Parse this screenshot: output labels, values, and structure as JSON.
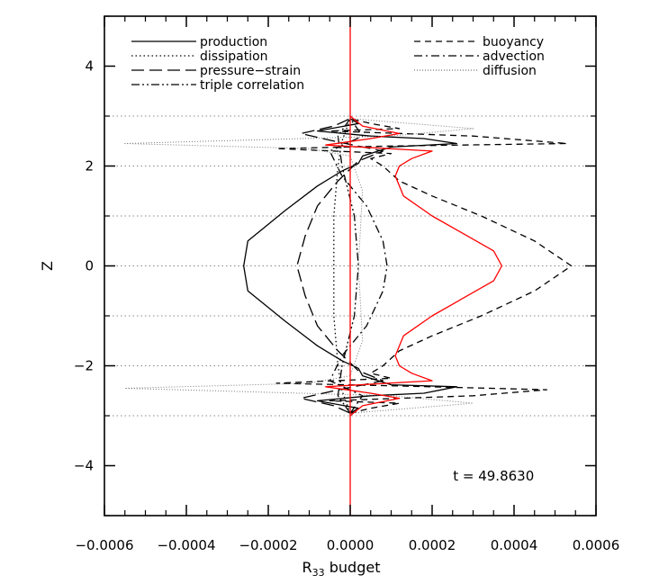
{
  "chart_data": {
    "type": "line",
    "title": "",
    "xlabel": "R",
    "xlabel_sub": "33",
    "xlabel_rest": " budget",
    "ylabel": "Z",
    "xlim": [
      -0.0006,
      0.0006
    ],
    "ylim": [
      -5,
      5
    ],
    "x_ticks": [
      -0.0006,
      -0.0004,
      -0.0002,
      0.0,
      0.0002,
      0.0004,
      0.0006
    ],
    "x_tick_labels": [
      "−0.0006",
      "−0.0004",
      "−0.0002",
      "0.0000",
      "0.0002",
      "0.0004",
      "0.0006"
    ],
    "y_ticks": [
      -4,
      -2,
      0,
      2,
      4
    ],
    "y_tick_labels": [
      "−4",
      "−2",
      "0",
      "2",
      "4"
    ],
    "grid": "dotted horizontal lines at z = -3, -2, -1, 0, 1, 2, 3",
    "grid_y": [
      -3,
      -2,
      -1,
      0,
      1,
      2,
      3
    ],
    "annotation": "t = 49.8630",
    "legend_placement": "top",
    "legend_left": [
      {
        "label": "production",
        "style": "solid"
      },
      {
        "label": "dissipation",
        "style": "dotted"
      },
      {
        "label": "pressure−strain",
        "style": "longdash"
      },
      {
        "label": "triple correlation",
        "style": "dashdotdot"
      }
    ],
    "legend_right": [
      {
        "label": "buoyancy",
        "style": "dashed"
      },
      {
        "label": "advection",
        "style": "dashdot"
      },
      {
        "label": "diffusion",
        "style": "finedot"
      }
    ],
    "series": [
      {
        "name": "buoyancy",
        "style": "dashed",
        "color": "#000000",
        "points": [
          [
            0,
            -2.95
          ],
          [
            5e-05,
            -2.85
          ],
          [
            0.00012,
            -2.75
          ],
          [
            -5e-05,
            -2.7
          ],
          [
            0.0003,
            -2.6
          ],
          [
            0.00048,
            -2.48
          ],
          [
            0.0001,
            -2.4
          ],
          [
            -0.00018,
            -2.35
          ],
          [
            0.0001,
            -2.25
          ],
          [
            5e-05,
            -2.15
          ],
          [
            8e-05,
            -2.0
          ],
          [
            0.00012,
            -1.7
          ],
          [
            0.0002,
            -1.4
          ],
          [
            0.00032,
            -1.0
          ],
          [
            0.00045,
            -0.5
          ],
          [
            0.00054,
            0
          ],
          [
            0.00045,
            0.5
          ],
          [
            0.00032,
            1.0
          ],
          [
            0.0002,
            1.4
          ],
          [
            0.00012,
            1.7
          ],
          [
            8e-05,
            2.0
          ],
          [
            5e-05,
            2.15
          ],
          [
            0.0001,
            2.25
          ],
          [
            -0.00018,
            2.35
          ],
          [
            0.0001,
            2.4
          ],
          [
            0.00053,
            2.45
          ],
          [
            0.0003,
            2.6
          ],
          [
            -5e-05,
            2.7
          ],
          [
            0.00012,
            2.75
          ],
          [
            5e-05,
            2.85
          ],
          [
            0,
            2.95
          ]
        ]
      },
      {
        "name": "production",
        "style": "solid",
        "color": "#000000",
        "points": [
          [
            0,
            -2.95
          ],
          [
            2e-05,
            -2.85
          ],
          [
            -8e-05,
            -2.7
          ],
          [
            5e-05,
            -2.6
          ],
          [
            0.00018,
            -2.55
          ],
          [
            0.00026,
            -2.42
          ],
          [
            0.0001,
            -2.38
          ],
          [
            3e-05,
            -2.2
          ],
          [
            2e-05,
            -2.05
          ],
          [
            -2e-05,
            -1.9
          ],
          [
            -8e-05,
            -1.6
          ],
          [
            -0.00016,
            -1.1
          ],
          [
            -0.00025,
            -0.5
          ],
          [
            -0.00026,
            0
          ],
          [
            -0.00025,
            0.5
          ],
          [
            -0.00016,
            1.1
          ],
          [
            -8e-05,
            1.6
          ],
          [
            -2e-05,
            1.9
          ],
          [
            2e-05,
            2.05
          ],
          [
            3e-05,
            2.2
          ],
          [
            0.0001,
            2.38
          ],
          [
            0.00026,
            2.45
          ],
          [
            0.00018,
            2.55
          ],
          [
            5e-05,
            2.6
          ],
          [
            -8e-05,
            2.7
          ],
          [
            2e-05,
            2.85
          ],
          [
            0,
            2.95
          ]
        ]
      },
      {
        "name": "pressure−strain",
        "style": "longdash",
        "color": "#000000",
        "points": [
          [
            0,
            -2.95
          ],
          [
            -4e-05,
            -2.8
          ],
          [
            -0.00012,
            -2.65
          ],
          [
            -4e-05,
            -2.5
          ],
          [
            8e-05,
            -2.3
          ],
          [
            2e-05,
            -2.1
          ],
          [
            -3e-05,
            -1.7
          ],
          [
            -8e-05,
            -1.2
          ],
          [
            -0.00011,
            -0.6
          ],
          [
            -0.00013,
            0
          ],
          [
            -0.00011,
            0.6
          ],
          [
            -8e-05,
            1.2
          ],
          [
            -3e-05,
            1.7
          ],
          [
            2e-05,
            2.1
          ],
          [
            8e-05,
            2.3
          ],
          [
            -4e-05,
            2.5
          ],
          [
            -0.00012,
            2.65
          ],
          [
            -4e-05,
            2.8
          ],
          [
            0,
            2.95
          ]
        ]
      },
      {
        "name": "dissipation",
        "style": "dotted",
        "color": "#000000",
        "points": [
          [
            0,
            -2.95
          ],
          [
            -2e-05,
            -2.5
          ],
          [
            -3e-05,
            -2.0
          ],
          [
            -4e-05,
            -1.0
          ],
          [
            -4e-05,
            0
          ],
          [
            -4e-05,
            1.0
          ],
          [
            -3e-05,
            2.0
          ],
          [
            -2e-05,
            2.5
          ],
          [
            0,
            2.95
          ]
        ]
      },
      {
        "name": "advection",
        "style": "dashdot",
        "color": "#000000",
        "points": [
          [
            0,
            -2.95
          ],
          [
            3e-05,
            -2.6
          ],
          [
            -5e-05,
            -2.3
          ],
          [
            -2e-05,
            -1.8
          ],
          [
            4e-05,
            -1.2
          ],
          [
            8e-05,
            -0.5
          ],
          [
            9e-05,
            0
          ],
          [
            8e-05,
            0.5
          ],
          [
            4e-05,
            1.2
          ],
          [
            -2e-05,
            1.8
          ],
          [
            -5e-05,
            2.3
          ],
          [
            3e-05,
            2.6
          ],
          [
            0,
            2.95
          ]
        ]
      },
      {
        "name": "triple correlation",
        "style": "dashdotdot",
        "color": "#000000",
        "points": [
          [
            0,
            -2.95
          ],
          [
            -3e-05,
            -2.6
          ],
          [
            -2e-05,
            -2.0
          ],
          [
            1e-05,
            -1.0
          ],
          [
            2e-05,
            0
          ],
          [
            1e-05,
            1.0
          ],
          [
            -2e-05,
            2.0
          ],
          [
            -3e-05,
            2.6
          ],
          [
            0,
            2.95
          ]
        ]
      },
      {
        "name": "diffusion",
        "style": "finedot",
        "color": "#000000",
        "points": [
          [
            0,
            -2.95
          ],
          [
            0.0003,
            -2.75
          ],
          [
            0.0001,
            -2.6
          ],
          [
            -0.00055,
            -2.45
          ],
          [
            -0.0001,
            -2.35
          ],
          [
            0,
            -2.2
          ],
          [
            3e-05,
            -1.5
          ],
          [
            2e-05,
            0
          ],
          [
            3e-05,
            1.5
          ],
          [
            0,
            2.2
          ],
          [
            -0.0001,
            2.35
          ],
          [
            -0.00055,
            2.45
          ],
          [
            0.0001,
            2.6
          ],
          [
            0.0003,
            2.75
          ],
          [
            0,
            2.95
          ]
        ]
      },
      {
        "name": "",
        "style": "solid",
        "color": "#ff0000",
        "points": [
          [
            0,
            -3.0
          ],
          [
            3e-05,
            -2.8
          ],
          [
            0.00012,
            -2.65
          ],
          [
            5e-05,
            -2.55
          ],
          [
            -6e-05,
            -2.42
          ],
          [
            0.0002,
            -2.3
          ],
          [
            0.00015,
            -2.15
          ],
          [
            0.00012,
            -2.0
          ],
          [
            0.00011,
            -1.8
          ],
          [
            0.00013,
            -1.4
          ],
          [
            0.0002,
            -1.0
          ],
          [
            0.00035,
            -0.3
          ],
          [
            0.00037,
            0
          ],
          [
            0.00035,
            0.3
          ],
          [
            0.0002,
            1.0
          ],
          [
            0.00013,
            1.4
          ],
          [
            0.00011,
            1.8
          ],
          [
            0.00012,
            2.0
          ],
          [
            0.00015,
            2.15
          ],
          [
            0.0002,
            2.3
          ],
          [
            -6e-05,
            2.42
          ],
          [
            5e-05,
            2.55
          ],
          [
            0.00012,
            2.65
          ],
          [
            3e-05,
            2.8
          ],
          [
            0,
            3.0
          ]
        ]
      }
    ]
  }
}
